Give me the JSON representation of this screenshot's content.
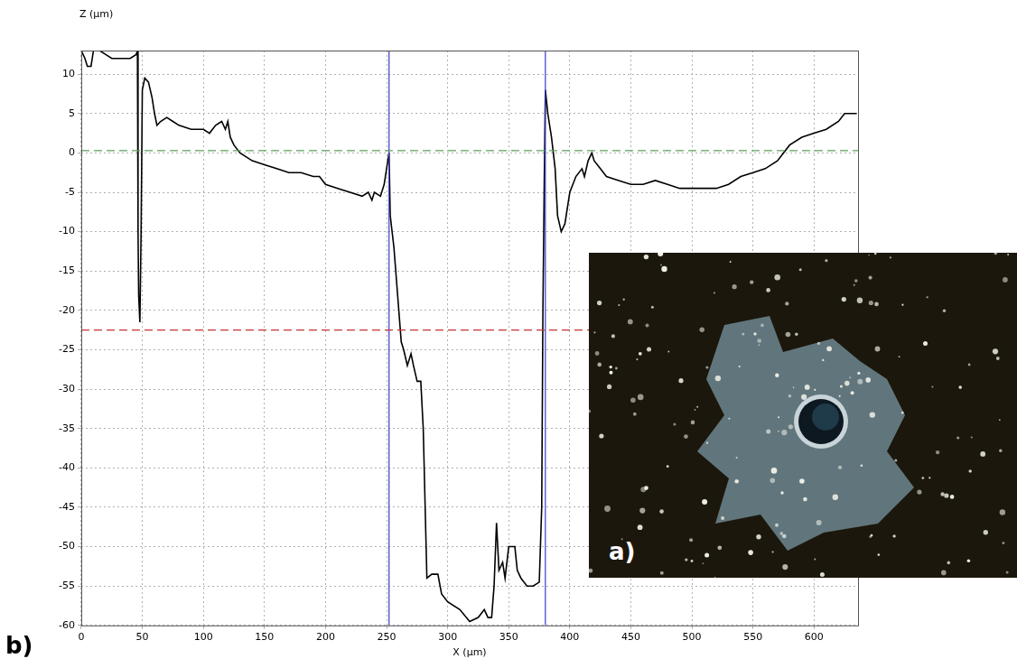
{
  "chart_data": {
    "type": "line",
    "panel_label": "b)",
    "x_label": "X (µm)",
    "y_label": "Z (µm)",
    "x": [
      0,
      3,
      5,
      8,
      10,
      15,
      20,
      25,
      30,
      40,
      45,
      46,
      46.5,
      47,
      48,
      49,
      50,
      52,
      55,
      58,
      60,
      62,
      65,
      70,
      75,
      80,
      90,
      100,
      105,
      110,
      115,
      118,
      120,
      122,
      125,
      130,
      140,
      150,
      160,
      170,
      180,
      190,
      195,
      200,
      210,
      220,
      230,
      235,
      238,
      240,
      245,
      248,
      250,
      252,
      253,
      256,
      258,
      262,
      264,
      267,
      270,
      272,
      275,
      278,
      280,
      283,
      287,
      292,
      295,
      300,
      310,
      318,
      325,
      330,
      333,
      336,
      338,
      340,
      342,
      345,
      347,
      350,
      355,
      357,
      360,
      365,
      370,
      375,
      377,
      378,
      379,
      380,
      382,
      385,
      388,
      390,
      393,
      396,
      400,
      405,
      410,
      412,
      415,
      418,
      420,
      425,
      430,
      440,
      450,
      460,
      470,
      480,
      490,
      500,
      510,
      520,
      530,
      540,
      550,
      560,
      570,
      580,
      590,
      600,
      610,
      620,
      625,
      635
    ],
    "values": [
      13,
      12,
      11,
      11,
      13,
      13,
      12.5,
      12,
      12,
      12,
      12.5,
      13,
      -10,
      -18,
      -21.5,
      -10,
      8,
      9.5,
      9,
      7,
      5,
      3.5,
      4,
      4.5,
      4,
      3.5,
      3,
      3,
      2.5,
      3.5,
      4,
      3,
      4,
      2,
      1,
      0,
      -1,
      -1.5,
      -2,
      -2.5,
      -2.5,
      -3,
      -3,
      -4,
      -4.5,
      -5,
      -5.5,
      -5,
      -6,
      -5,
      -5.5,
      -4,
      -2,
      0,
      -8,
      -12,
      -16,
      -24,
      -25,
      -27,
      -25.5,
      -27,
      -29,
      -29,
      -35,
      -54,
      -53.5,
      -53.5,
      -56,
      -57,
      -58,
      -59.5,
      -59,
      -58,
      -59,
      -59,
      -55,
      -47,
      -53,
      -52,
      -54,
      -50,
      -50,
      -53,
      -54,
      -55,
      -55,
      -54.5,
      -45,
      -20,
      -5,
      8,
      5,
      2,
      -2,
      -8,
      -10,
      -9,
      -5,
      -3,
      -2,
      -3,
      -1,
      0,
      -1,
      -2,
      -3,
      -3.5,
      -4,
      -4,
      -3.5,
      -4,
      -4.5,
      -4.5,
      -4.5,
      -4.5,
      -4,
      -3,
      -2.5,
      -2,
      -1,
      1,
      2,
      2.5,
      3,
      4,
      5,
      5
    ],
    "color": "#000000",
    "xlim": [
      0,
      636
    ],
    "xticks": [
      0,
      50,
      100,
      150,
      200,
      250,
      300,
      350,
      400,
      450,
      500,
      550,
      600
    ],
    "ylim": [
      -60,
      13
    ],
    "yticks": [
      -60,
      -55,
      -50,
      -45,
      -40,
      -35,
      -30,
      -25,
      -20,
      -15,
      -10,
      -5,
      0,
      5,
      10
    ],
    "grid": true,
    "hlines": [
      {
        "value": 0.3,
        "color": "#5aa05a",
        "line_style": "dashed"
      },
      {
        "value": -22.5,
        "color": "#c83232",
        "line_style": "dashed"
      }
    ],
    "vlines": [
      {
        "value": 252,
        "color": "#3a3ac8",
        "line_style": "solid"
      },
      {
        "value": 380,
        "color": "#3a3ac8",
        "line_style": "solid"
      }
    ]
  },
  "inset": {
    "panel_label": "a)"
  }
}
